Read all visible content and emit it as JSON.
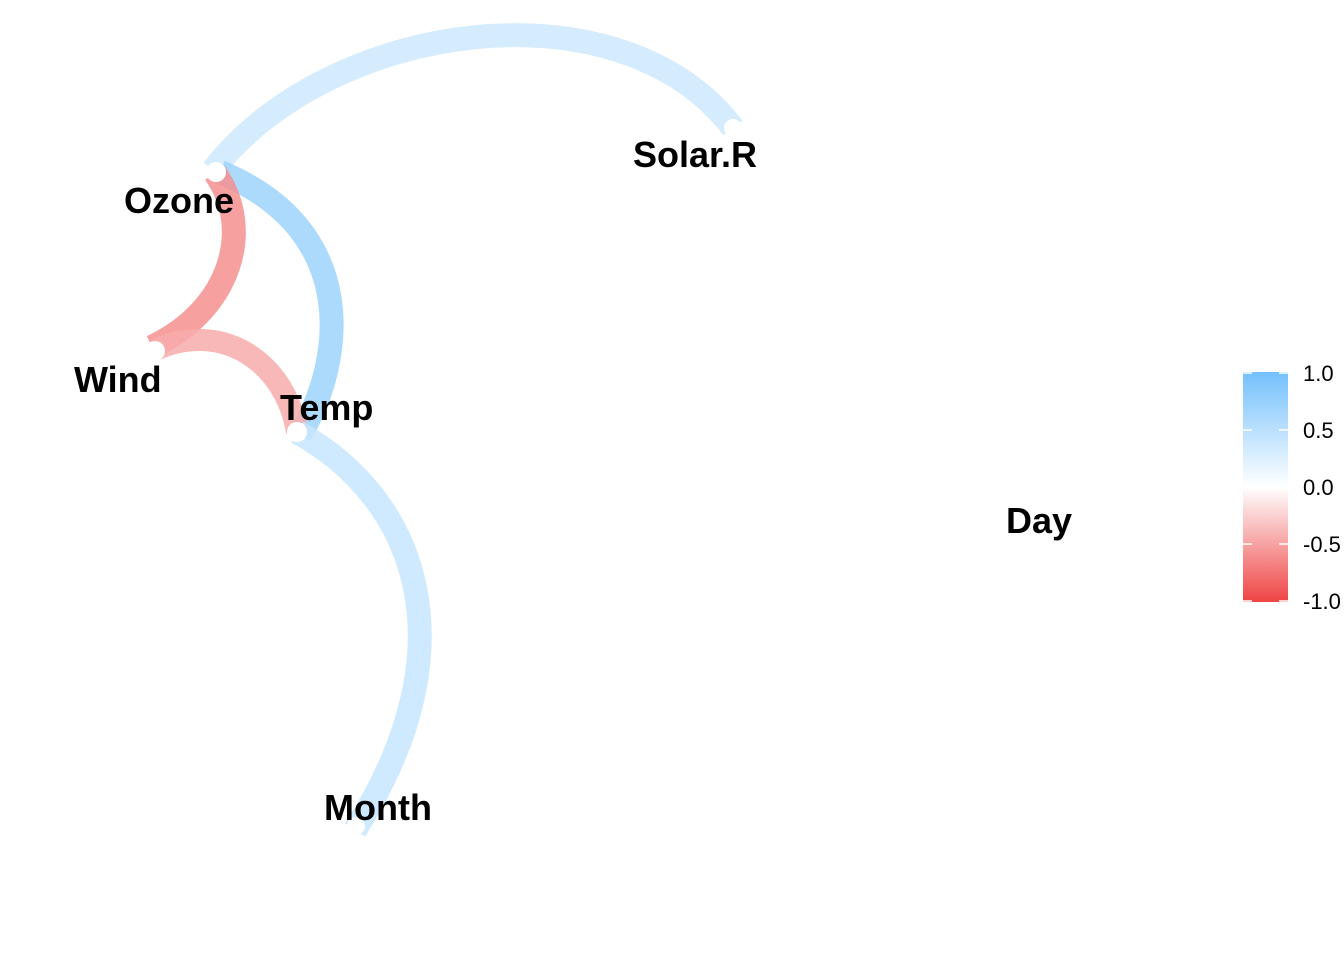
{
  "nodes": [
    {
      "id": "ozone",
      "label": "Ozone"
    },
    {
      "id": "solar_r",
      "label": "Solar.R"
    },
    {
      "id": "wind",
      "label": "Wind"
    },
    {
      "id": "temp",
      "label": "Temp"
    },
    {
      "id": "month",
      "label": "Month"
    },
    {
      "id": "day",
      "label": "Day"
    }
  ],
  "edges": [
    {
      "from": "ozone",
      "to": "solar_r",
      "correlation": 0.35
    },
    {
      "from": "ozone",
      "to": "temp",
      "correlation": 0.7
    },
    {
      "from": "ozone",
      "to": "wind",
      "correlation": -0.6
    },
    {
      "from": "wind",
      "to": "temp",
      "correlation": -0.45
    },
    {
      "from": "temp",
      "to": "month",
      "correlation": 0.4
    }
  ],
  "legend": {
    "ticks": [
      "1.0",
      "0.5",
      "0.0",
      "-0.5",
      "-1.0"
    ],
    "colors": {
      "positive": "#74c0fc",
      "neutral": "#ffffff",
      "negative": "#ef4444"
    }
  }
}
